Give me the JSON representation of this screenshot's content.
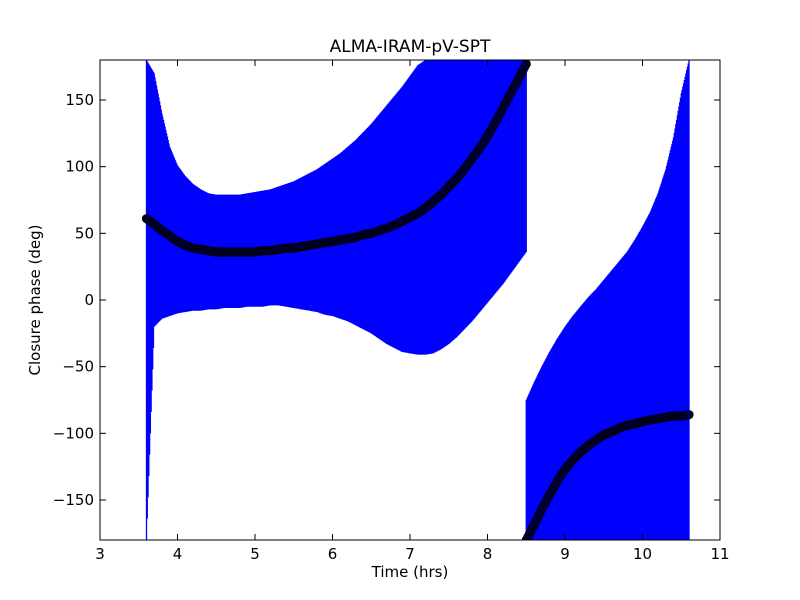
{
  "chart_data": {
    "type": "scatter",
    "title": "ALMA-IRAM-pV-SPT",
    "xlabel": "Time (hrs)",
    "ylabel": "Closure phase (deg)",
    "xlim": [
      3,
      11
    ],
    "ylim": [
      -180,
      180
    ],
    "xticks": [
      3,
      4,
      5,
      6,
      7,
      8,
      9,
      10,
      11
    ],
    "yticks": [
      -150,
      -100,
      -50,
      0,
      50,
      100,
      150
    ],
    "grid": false,
    "legend": "none",
    "colors": {
      "errorbar": "#0000ff",
      "marker": "#00003a",
      "marker_edge": "#000000"
    },
    "series": [
      {
        "x": [
          3.6,
          3.7,
          3.8,
          3.9,
          4.0,
          4.1,
          4.2,
          4.3,
          4.4,
          4.5,
          4.6,
          4.7,
          4.8,
          4.9,
          5.0,
          5.1,
          5.2,
          5.3,
          5.4,
          5.5,
          5.6,
          5.7,
          5.8,
          5.9,
          6.0,
          6.1,
          6.2,
          6.3,
          6.4,
          6.5,
          6.6,
          6.7,
          6.8,
          6.9,
          7.0,
          7.1,
          7.2,
          7.3,
          7.4,
          7.5,
          7.6,
          7.7,
          7.8,
          7.9,
          8.0,
          8.1,
          8.2,
          8.3,
          8.4,
          8.5
        ],
        "y": [
          61,
          57,
          52,
          48,
          44,
          41,
          39,
          38,
          37,
          36,
          36,
          36,
          36,
          36,
          36,
          37,
          37,
          38,
          39,
          39,
          40,
          41,
          42,
          43,
          44,
          45,
          46,
          47,
          49,
          50,
          52,
          54,
          56,
          59,
          62,
          65,
          69,
          74,
          79,
          85,
          91,
          98,
          106,
          114,
          123,
          133,
          144,
          155,
          166,
          177
        ],
        "err_low": [
          -180,
          -20,
          -14,
          -12,
          -10,
          -9,
          -8,
          -8,
          -7,
          -7,
          -6,
          -6,
          -6,
          -5,
          -5,
          -5,
          -4,
          -4,
          -5,
          -6,
          -7,
          -8,
          -9,
          -11,
          -12,
          -14,
          -16,
          -19,
          -22,
          -25,
          -29,
          -33,
          -36,
          -39,
          -40,
          -41,
          -41,
          -40,
          -37,
          -33,
          -28,
          -22,
          -16,
          -9,
          -2,
          5,
          12,
          20,
          28,
          36
        ],
        "err_high": [
          180,
          170,
          140,
          115,
          101,
          93,
          87,
          83,
          80,
          79,
          79,
          79,
          79,
          80,
          81,
          82,
          83,
          85,
          87,
          89,
          92,
          95,
          98,
          102,
          106,
          110,
          115,
          120,
          126,
          132,
          139,
          146,
          153,
          160,
          168,
          176,
          180,
          180,
          180,
          180,
          180,
          180,
          180,
          180,
          180,
          180,
          180,
          180,
          180,
          180
        ]
      },
      {
        "x": [
          8.5,
          8.6,
          8.7,
          8.8,
          8.9,
          9.0,
          9.1,
          9.2,
          9.3,
          9.4,
          9.5,
          9.6,
          9.7,
          9.8,
          9.9,
          10.0,
          10.1,
          10.2,
          10.3,
          10.4,
          10.5,
          10.6
        ],
        "y": [
          -180,
          -169,
          -157,
          -146,
          -136,
          -127,
          -120,
          -114,
          -109,
          -105,
          -101,
          -99,
          -96,
          -94,
          -93,
          -91,
          -90,
          -89,
          -88,
          -87,
          -87,
          -86
        ],
        "err_low": [
          -180,
          -180,
          -180,
          -180,
          -180,
          -180,
          -180,
          -180,
          -180,
          -180,
          -180,
          -180,
          -180,
          -180,
          -180,
          -180,
          -180,
          -180,
          -180,
          -180,
          -180,
          -180
        ],
        "err_high": [
          -75,
          -62,
          -50,
          -39,
          -29,
          -20,
          -12,
          -5,
          2,
          8,
          15,
          22,
          29,
          36,
          45,
          55,
          66,
          80,
          98,
          122,
          155,
          180
        ]
      }
    ]
  }
}
